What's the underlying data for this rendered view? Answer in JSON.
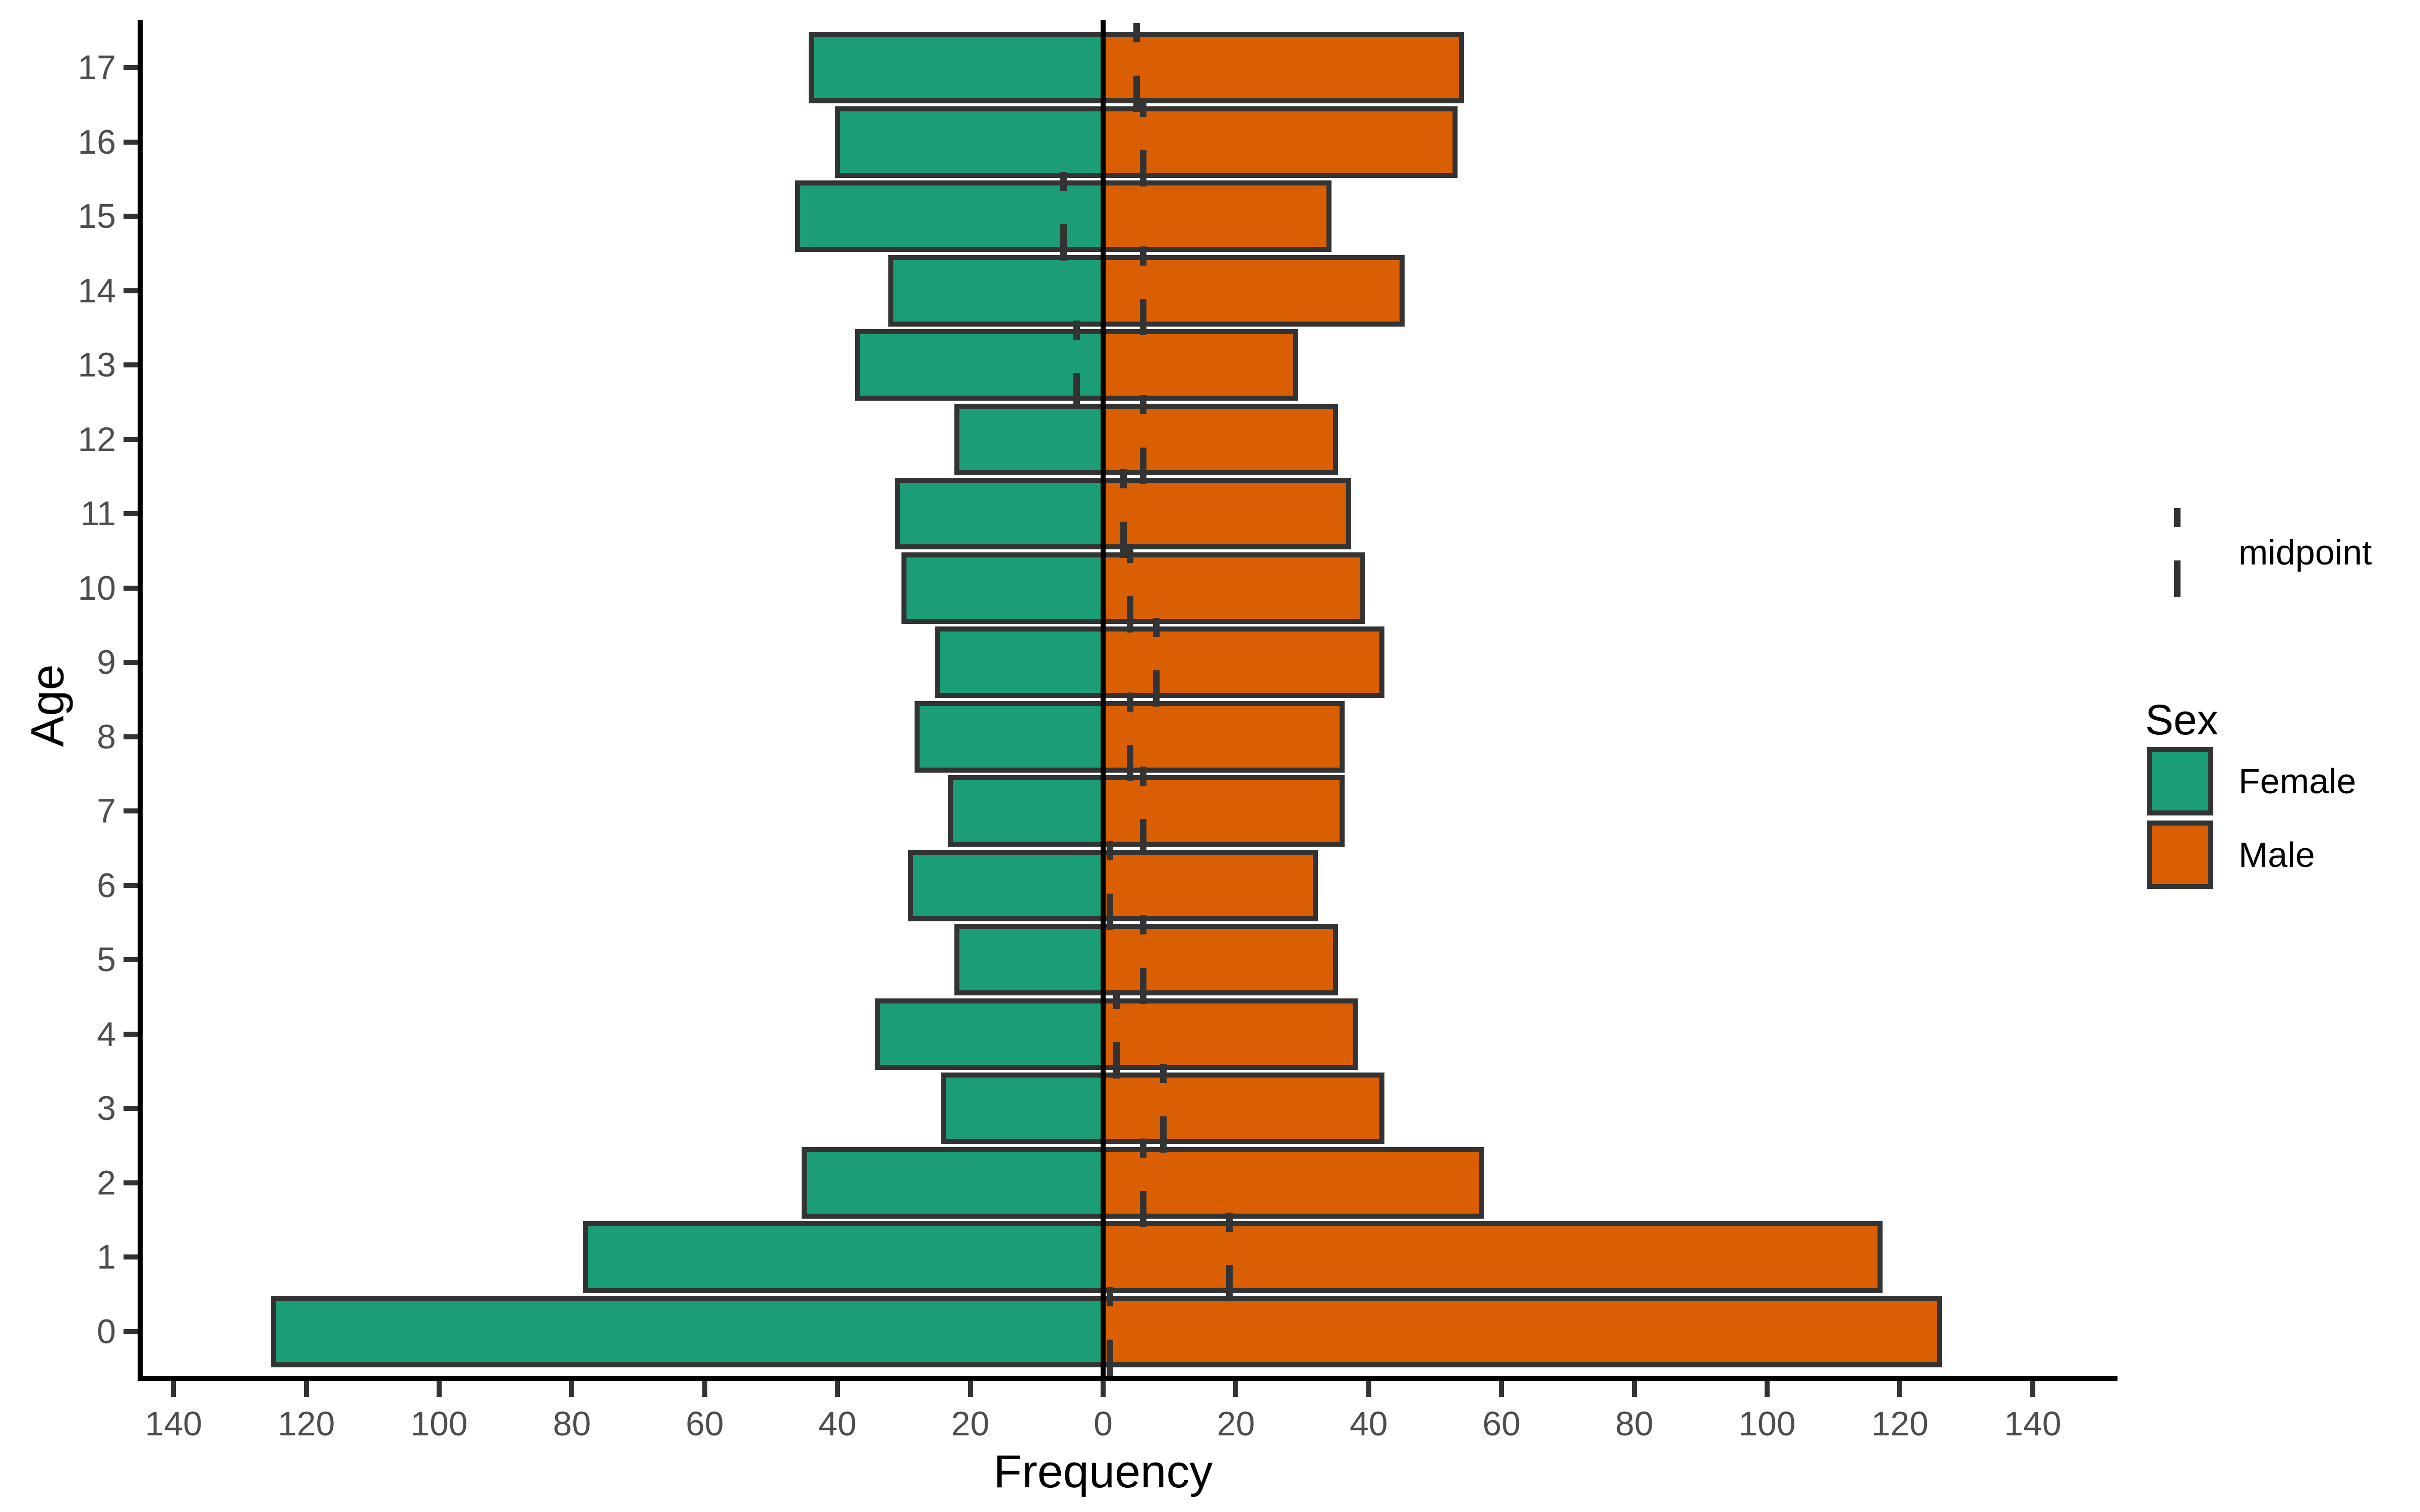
{
  "chart_data": {
    "type": "bar",
    "variant": "population-pyramid",
    "orientation": "horizontal",
    "title": "",
    "xlabel": "Frequency",
    "ylabel": "Age",
    "grid": "off",
    "legend_position": "right",
    "x_axis": {
      "min": -150,
      "max": 150,
      "tick_values": [
        -140,
        -120,
        -100,
        -80,
        -60,
        -40,
        -20,
        0,
        20,
        40,
        60,
        80,
        100,
        120,
        140
      ],
      "tick_labels": [
        "140",
        "120",
        "100",
        "80",
        "60",
        "40",
        "20",
        "0",
        "20",
        "40",
        "60",
        "80",
        "100",
        "120",
        "140"
      ]
    },
    "y_axis": {
      "categories_top_to_bottom": [
        "17",
        "16",
        "15",
        "14",
        "13",
        "12",
        "11",
        "10",
        "9",
        "8",
        "7",
        "6",
        "5",
        "4",
        "3",
        "2",
        "1",
        "0"
      ]
    },
    "series": [
      {
        "name": "Female",
        "side": "left",
        "color": "#1b9e77"
      },
      {
        "name": "Male",
        "side": "right",
        "color": "#d95f02"
      }
    ],
    "rows": [
      {
        "age": "17",
        "female": 44,
        "male": 54,
        "midpoint": 5
      },
      {
        "age": "16",
        "female": 40,
        "male": 53,
        "midpoint": 6
      },
      {
        "age": "15",
        "female": 46,
        "male": 34,
        "midpoint": -6
      },
      {
        "age": "14",
        "female": 32,
        "male": 45,
        "midpoint": 6
      },
      {
        "age": "13",
        "female": 37,
        "male": 29,
        "midpoint": -4
      },
      {
        "age": "12",
        "female": 22,
        "male": 35,
        "midpoint": 6
      },
      {
        "age": "11",
        "female": 31,
        "male": 37,
        "midpoint": 3
      },
      {
        "age": "10",
        "female": 30,
        "male": 39,
        "midpoint": 4
      },
      {
        "age": "9",
        "female": 25,
        "male": 42,
        "midpoint": 8
      },
      {
        "age": "8",
        "female": 28,
        "male": 36,
        "midpoint": 4
      },
      {
        "age": "7",
        "female": 23,
        "male": 36,
        "midpoint": 6
      },
      {
        "age": "6",
        "female": 29,
        "male": 32,
        "midpoint": 1
      },
      {
        "age": "5",
        "female": 22,
        "male": 35,
        "midpoint": 6
      },
      {
        "age": "4",
        "female": 34,
        "male": 38,
        "midpoint": 2
      },
      {
        "age": "3",
        "female": 24,
        "male": 42,
        "midpoint": 9
      },
      {
        "age": "2",
        "female": 45,
        "male": 57,
        "midpoint": 6
      },
      {
        "age": "1",
        "female": 78,
        "male": 117,
        "midpoint": 19
      },
      {
        "age": "0",
        "female": 125,
        "male": 126,
        "midpoint": 1
      }
    ]
  },
  "legend": {
    "midpoint": {
      "symbol": "dashed-vertical-line",
      "label": "midpoint"
    },
    "sex": {
      "title": "Sex",
      "entries": [
        {
          "label": "Female",
          "color": "#1b9e77"
        },
        {
          "label": "Male",
          "color": "#d95f02"
        }
      ]
    }
  },
  "colors": {
    "female": "#1b9e77",
    "male": "#d95f02",
    "bar_border": "#333333",
    "axis": "#000000",
    "tick_mark": "#333333",
    "tick_label": "#4d4d4d",
    "axis_title": "#000000",
    "midpoint_marker": "#333333",
    "background": "#ffffff"
  }
}
